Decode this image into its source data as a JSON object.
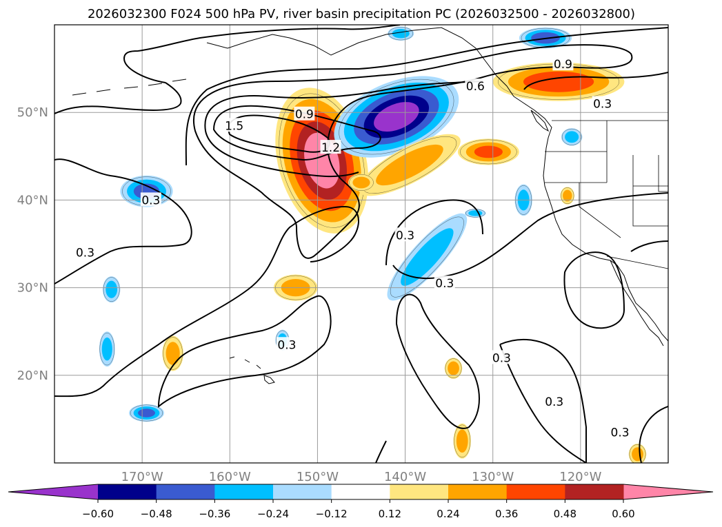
{
  "chart_data": {
    "type": "contour-map",
    "title": "2026032300 F024 500 hPa PV, river basin precipitation PC (2026032500 - 2026032800)",
    "map_extent": {
      "lon": [
        -180,
        -110
      ],
      "lat": [
        10,
        60
      ]
    },
    "lat_ticks": [
      {
        "value": 20,
        "label": "20°N"
      },
      {
        "value": 30,
        "label": "30°N"
      },
      {
        "value": 40,
        "label": "40°N"
      },
      {
        "value": 50,
        "label": "50°N"
      }
    ],
    "lon_ticks": [
      {
        "value": -170,
        "label": "170°W"
      },
      {
        "value": -160,
        "label": "160°W"
      },
      {
        "value": -150,
        "label": "150°W"
      },
      {
        "value": -140,
        "label": "140°W"
      },
      {
        "value": -130,
        "label": "130°W"
      },
      {
        "value": -120,
        "label": "120°W"
      }
    ],
    "colorbar": {
      "min": -0.72,
      "max": 0.72,
      "colors": [
        "#9933cc",
        "#00008b",
        "#3a5bd0",
        "#00bfff",
        "#aadcff",
        "#ffffff",
        "#ffe680",
        "#ffa500",
        "#ff4500",
        "#b22222",
        "#ff85a8"
      ],
      "ticks": [
        {
          "value": -0.6,
          "label": "−0.60"
        },
        {
          "value": -0.48,
          "label": "−0.48"
        },
        {
          "value": -0.36,
          "label": "−0.36"
        },
        {
          "value": -0.24,
          "label": "−0.24"
        },
        {
          "value": -0.12,
          "label": "−0.12"
        },
        {
          "value": 0.12,
          "label": "0.12"
        },
        {
          "value": 0.24,
          "label": "0.24"
        },
        {
          "value": 0.36,
          "label": "0.36"
        },
        {
          "value": 0.48,
          "label": "0.48"
        },
        {
          "value": 0.6,
          "label": "0.60"
        }
      ]
    },
    "pv_contour_labels": [
      {
        "text": "1.5",
        "lon": -159.5,
        "lat": 48.5
      },
      {
        "text": "0.9",
        "lon": -151.5,
        "lat": 49.8
      },
      {
        "text": "1.2",
        "lon": -148.5,
        "lat": 46.0
      },
      {
        "text": "0.6",
        "lon": -132.0,
        "lat": 53.0
      },
      {
        "text": "0.9",
        "lon": -122.0,
        "lat": 55.5
      },
      {
        "text": "0.3",
        "lon": -117.5,
        "lat": 51.0
      },
      {
        "text": "0.3",
        "lon": -169.0,
        "lat": 40.0
      },
      {
        "text": "0.3",
        "lon": -176.5,
        "lat": 34.0
      },
      {
        "text": "0.3",
        "lon": -140.0,
        "lat": 36.0
      },
      {
        "text": "0.3",
        "lon": -135.5,
        "lat": 30.5
      },
      {
        "text": "0.3",
        "lon": -153.5,
        "lat": 23.5
      },
      {
        "text": "0.3",
        "lon": -129.0,
        "lat": 22.0
      },
      {
        "text": "0.3",
        "lon": -123.0,
        "lat": 17.0
      },
      {
        "text": "0.3",
        "lon": -115.5,
        "lat": 13.5
      }
    ],
    "precip_pc_anomalies": [
      {
        "lon": -149.5,
        "lat": 44.5,
        "rx": 5.0,
        "ry": 8.5,
        "rot": -15,
        "value": 0.66
      },
      {
        "lon": -141.0,
        "lat": 49.5,
        "rx": 7.5,
        "ry": 4.0,
        "rot": -22,
        "value": -0.64
      },
      {
        "lon": -122.5,
        "lat": 53.5,
        "rx": 7.5,
        "ry": 2.2,
        "rot": 0,
        "value": 0.44
      },
      {
        "lon": -139.5,
        "lat": 44.0,
        "rx": 6.5,
        "ry": 2.0,
        "rot": -28,
        "value": 0.3
      },
      {
        "lon": -130.5,
        "lat": 45.5,
        "rx": 3.5,
        "ry": 1.5,
        "rot": 0,
        "value": 0.38
      },
      {
        "lon": -169.5,
        "lat": 41.0,
        "rx": 3.0,
        "ry": 1.8,
        "rot": 0,
        "value": -0.4
      },
      {
        "lon": -137.5,
        "lat": 33.5,
        "rx": 6.5,
        "ry": 1.8,
        "rot": -48,
        "value": -0.3
      },
      {
        "lon": -152.5,
        "lat": 30.0,
        "rx": 2.5,
        "ry": 1.5,
        "rot": 0,
        "value": 0.3
      },
      {
        "lon": -173.5,
        "lat": 29.8,
        "rx": 1.0,
        "ry": 1.5,
        "rot": 0,
        "value": -0.3
      },
      {
        "lon": -166.5,
        "lat": 22.5,
        "rx": 1.2,
        "ry": 2.0,
        "rot": 0,
        "value": 0.3
      },
      {
        "lon": -174.0,
        "lat": 23.0,
        "rx": 0.9,
        "ry": 2.0,
        "rot": 0,
        "value": -0.3
      },
      {
        "lon": -169.5,
        "lat": 15.7,
        "rx": 2.0,
        "ry": 1.0,
        "rot": 0,
        "value": -0.4
      },
      {
        "lon": -134.5,
        "lat": 20.8,
        "rx": 1.0,
        "ry": 1.2,
        "rot": 0,
        "value": 0.3
      },
      {
        "lon": -126.5,
        "lat": 40.0,
        "rx": 1.0,
        "ry": 1.8,
        "rot": 0,
        "value": -0.3
      },
      {
        "lon": -121.5,
        "lat": 40.5,
        "rx": 0.8,
        "ry": 1.0,
        "rot": 0,
        "value": 0.3
      },
      {
        "lon": -121.0,
        "lat": 47.2,
        "rx": 1.2,
        "ry": 1.0,
        "rot": 0,
        "value": -0.3
      },
      {
        "lon": -140.5,
        "lat": 59.0,
        "rx": 1.5,
        "ry": 0.8,
        "rot": 0,
        "value": -0.3
      },
      {
        "lon": -124.0,
        "lat": 58.5,
        "rx": 3.0,
        "ry": 1.2,
        "rot": 0,
        "value": -0.45
      },
      {
        "lon": -133.5,
        "lat": 12.5,
        "rx": 1.0,
        "ry": 2.0,
        "rot": 0,
        "value": 0.3
      },
      {
        "lon": -113.5,
        "lat": 11.0,
        "rx": 1.0,
        "ry": 1.2,
        "rot": 0,
        "value": 0.3
      },
      {
        "lon": -132.0,
        "lat": 38.5,
        "rx": 1.2,
        "ry": 0.5,
        "rot": 0,
        "value": -0.3
      },
      {
        "lon": -154.0,
        "lat": 24.0,
        "rx": 0.8,
        "ry": 1.2,
        "rot": 0,
        "value": -0.3
      },
      {
        "lon": -145.0,
        "lat": 42.0,
        "rx": 1.5,
        "ry": 1.0,
        "rot": 0,
        "value": 0.3
      }
    ]
  }
}
